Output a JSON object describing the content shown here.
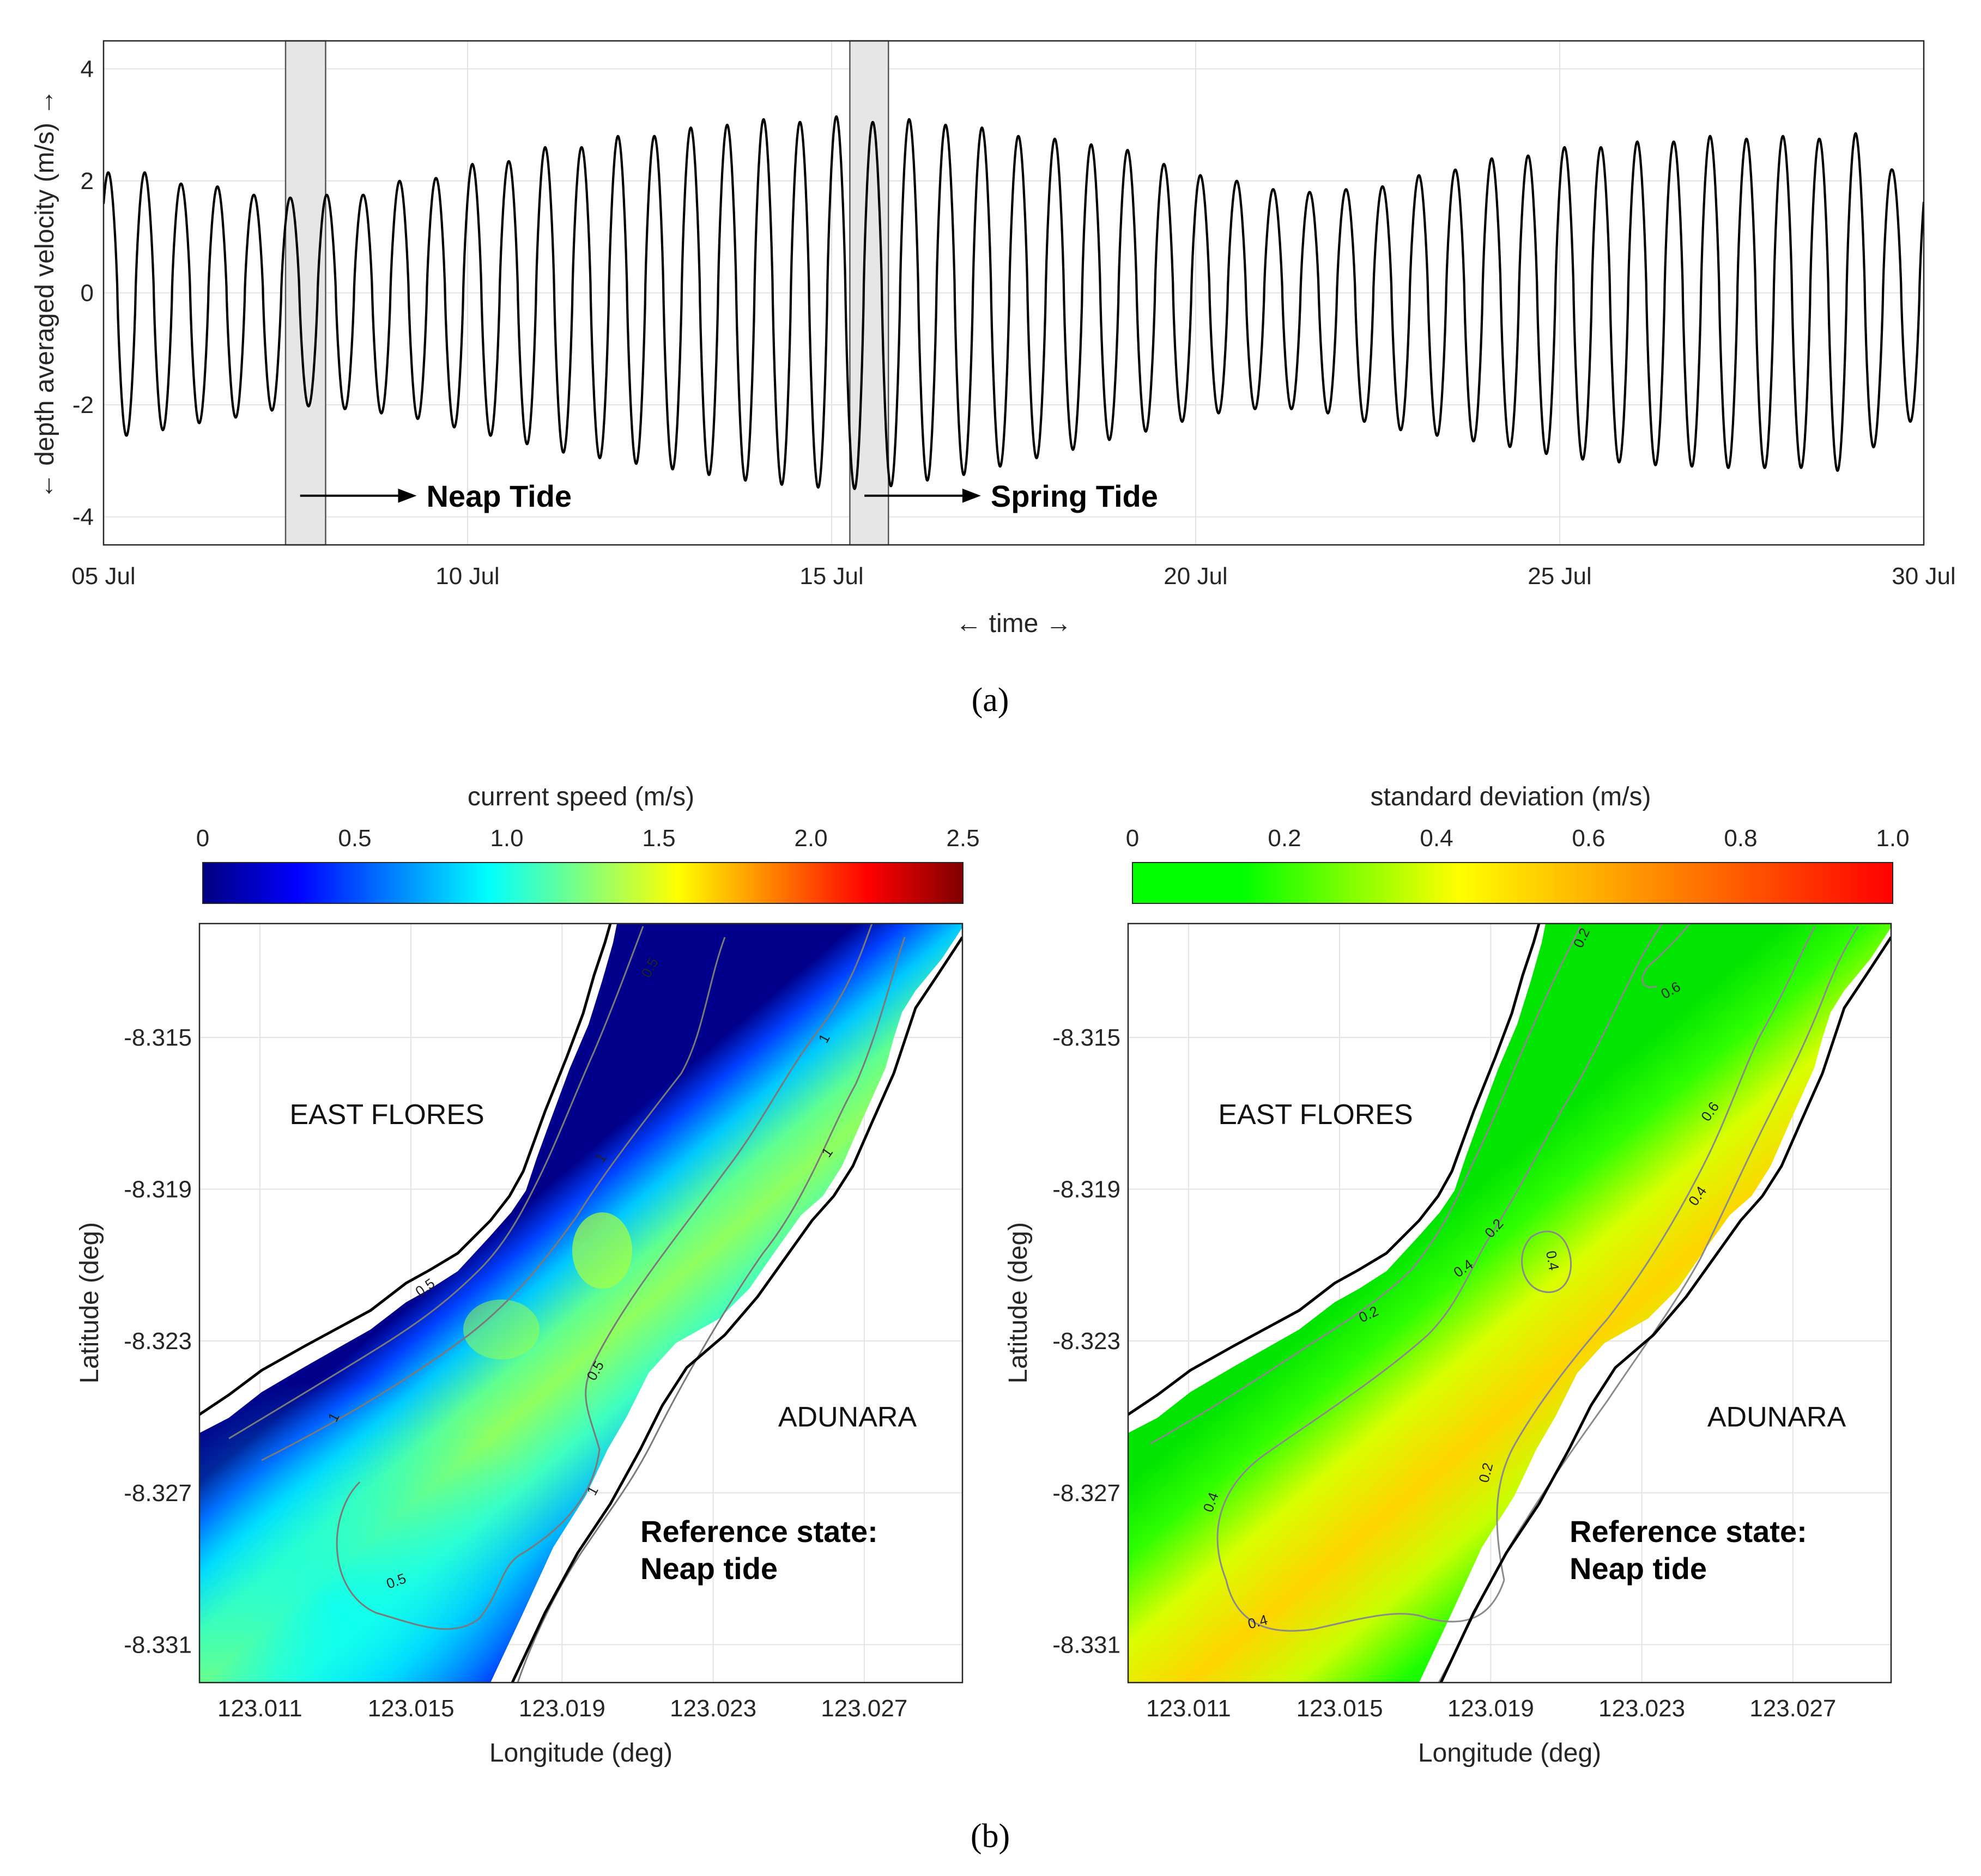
{
  "panel_a": {
    "label": "(a)",
    "chart_data": {
      "type": "line",
      "title": "",
      "xlabel": "← time →",
      "ylabel": "← depth averaged velocity (m/s) →",
      "x_start_day": 5,
      "x_end_day": 30,
      "xlim": [
        5,
        30
      ],
      "ylim": [
        -4.5,
        4.5
      ],
      "xtick_labels": [
        "05 Jul",
        "10 Jul",
        "15 Jul",
        "20 Jul",
        "25 Jul",
        "30 Jul"
      ],
      "ytick_labels": [
        "4",
        "2",
        "0",
        "-2",
        "-4"
      ],
      "tidal_cycles": 50,
      "flood_peaks": [
        2.15,
        2.15,
        1.95,
        1.9,
        1.75,
        1.7,
        1.75,
        1.75,
        2.0,
        2.05,
        2.3,
        2.35,
        2.6,
        2.6,
        2.8,
        2.8,
        2.95,
        3.0,
        3.1,
        3.05,
        3.15,
        3.05,
        3.1,
        3.0,
        2.95,
        2.8,
        2.75,
        2.65,
        2.55,
        2.3,
        2.1,
        2.0,
        1.85,
        1.8,
        1.85,
        1.9,
        2.1,
        2.2,
        2.4,
        2.45,
        2.6,
        2.6,
        2.7,
        2.7,
        2.8,
        2.75,
        2.8,
        2.75,
        2.85,
        2.2
      ],
      "ebb_troughs": [
        -2.6,
        -2.5,
        -2.4,
        -2.25,
        -2.2,
        -2.0,
        -2.05,
        -2.1,
        -2.2,
        -2.3,
        -2.5,
        -2.6,
        -2.8,
        -2.9,
        -3.0,
        -3.1,
        -3.2,
        -3.3,
        -3.4,
        -3.45,
        -3.5,
        -3.5,
        -3.4,
        -3.3,
        -3.2,
        -3.0,
        -2.9,
        -2.7,
        -2.55,
        -2.4,
        -2.2,
        -2.1,
        -2.05,
        -2.1,
        -2.2,
        -2.4,
        -2.5,
        -2.6,
        -2.7,
        -2.8,
        -2.95,
        -3.0,
        -3.05,
        -3.1,
        -3.1,
        -3.15,
        -3.1,
        -3.15,
        -3.2,
        -2.3
      ],
      "highlight_windows": [
        {
          "name": "Neap Tide",
          "x_range": [
            7.5,
            8.05
          ]
        },
        {
          "name": "Spring Tide",
          "x_range": [
            15.25,
            15.78
          ]
        }
      ],
      "annotations": [
        {
          "text": "Neap Tide",
          "arrow_from_day": 7.7,
          "arrow_to_day": 9.3,
          "y": -3.7
        },
        {
          "text": "Spring Tide",
          "arrow_from_day": 15.45,
          "arrow_to_day": 17.05,
          "y": -3.7
        }
      ]
    }
  },
  "panel_b": {
    "label": "(b)",
    "left_map": {
      "colorbar": {
        "title": "current speed (m/s)",
        "tick_labels": [
          "0",
          "0.5",
          "1.0",
          "1.5",
          "2.0",
          "2.5"
        ],
        "range": [
          0,
          2.5
        ],
        "colormap": [
          "#000080",
          "#0000ff",
          "#0080ff",
          "#00ffff",
          "#80ff80",
          "#ffff00",
          "#ff8000",
          "#ff0000",
          "#800000"
        ]
      },
      "chart_data": {
        "type": "heatmap",
        "title": "",
        "xlabel": "Longitude (deg)",
        "ylabel": "Latitude (deg)",
        "xlim": [
          123.0094,
          123.0296
        ],
        "ylim": [
          -8.332,
          -8.312
        ],
        "xtick_labels": [
          "123.011",
          "123.015",
          "123.019",
          "123.023",
          "123.027"
        ],
        "ytick_labels": [
          "-8.315",
          "-8.319",
          "-8.323",
          "-8.327",
          "-8.331"
        ],
        "contour_labels": [
          "0.5",
          "1",
          "1",
          "0.5",
          "1",
          "0.5",
          "1",
          "1",
          "0.5"
        ],
        "channel_center_speed": 1.4,
        "channel_edge_speed": 0.1
      },
      "region_labels": {
        "north": "EAST FLORES",
        "south": "ADUNARA"
      },
      "state_text": {
        "line1": "Reference state:",
        "line2": "Neap tide"
      }
    },
    "right_map": {
      "colorbar": {
        "title": "standard deviation (m/s)",
        "tick_labels": [
          "0",
          "0.2",
          "0.4",
          "0.6",
          "0.8",
          "1.0"
        ],
        "range": [
          0,
          1.0
        ],
        "colormap": [
          "#00ff00",
          "#00ff00",
          "#80ff00",
          "#ffff00",
          "#ffc000",
          "#ff8000",
          "#ff4000",
          "#ff0000"
        ]
      },
      "chart_data": {
        "type": "heatmap",
        "title": "",
        "xlabel": "Longitude (deg)",
        "ylabel": "Latitude (deg)",
        "xlim": [
          123.0094,
          123.0296
        ],
        "ylim": [
          -8.332,
          -8.312
        ],
        "xtick_labels": [
          "123.011",
          "123.015",
          "123.019",
          "123.023",
          "123.027"
        ],
        "ytick_labels": [
          "-8.315",
          "-8.319",
          "-8.323",
          "-8.327",
          "-8.331"
        ],
        "contour_labels": [
          "0.2",
          "0.6",
          "0.4",
          "0.2",
          "0.4",
          "0.2",
          "0.6",
          "0.4",
          "0.2",
          "0.4",
          "0.4"
        ],
        "channel_center_std": 0.55,
        "channel_edge_std": 0.1
      },
      "region_labels": {
        "north": "EAST FLORES",
        "south": "ADUNARA"
      },
      "state_text": {
        "line1": "Reference state:",
        "line2": "Neap tide"
      }
    }
  },
  "colors": {
    "line": "#000000",
    "grid": "#e3e3e3",
    "axis": "#262626",
    "highlight": "#e6e6e6"
  }
}
